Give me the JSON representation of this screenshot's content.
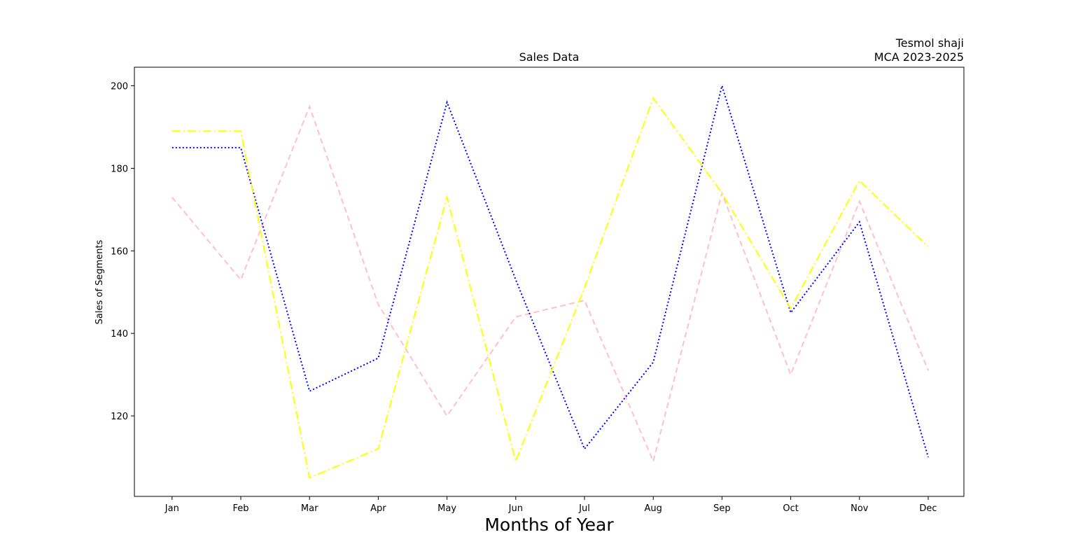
{
  "chart_data": {
    "type": "line",
    "title": "Sales Data",
    "annotation_lines": [
      "Tesmol shaji",
      "MCA 2023-2025"
    ],
    "xlabel": "Months of Year",
    "ylabel": "Sales of Segments",
    "categories": [
      "Jan",
      "Feb",
      "Mar",
      "Apr",
      "May",
      "Jun",
      "Jul",
      "Aug",
      "Sep",
      "Oct",
      "Nov",
      "Dec"
    ],
    "ylim": [
      100.5,
      204.5
    ],
    "yticks": [
      120,
      140,
      160,
      180,
      200
    ],
    "grid": false,
    "legend": "none",
    "series": [
      {
        "color": "#ffc0cb",
        "linestyle": "dashed",
        "values": [
          173,
          153,
          195,
          147,
          120,
          144,
          148,
          109,
          174,
          130,
          172,
          131
        ]
      },
      {
        "color": "#0000ff",
        "linestyle": "dotted",
        "values": [
          185,
          185,
          126,
          134,
          196,
          153,
          112,
          133,
          200,
          145,
          167,
          110
        ]
      },
      {
        "color": "#ffff00",
        "linestyle": "dashdot",
        "values": [
          189,
          189,
          105,
          112,
          173,
          109,
          151,
          197,
          174,
          146,
          177,
          161
        ]
      }
    ]
  }
}
